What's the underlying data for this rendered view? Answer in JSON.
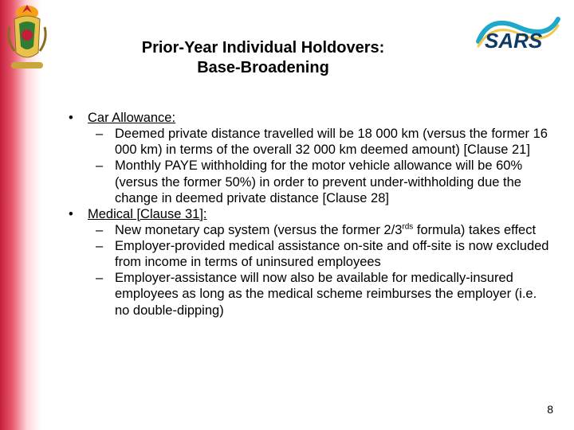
{
  "title_l1": "Prior-Year Individual Holdovers:",
  "title_l2": "Base-Broadening",
  "items": [
    {
      "label": "Car Allowance:",
      "underline": true,
      "sub": [
        "Deemed private distance travelled will be 18 000 km (versus the former 16 000 km) in terms of the overall 32 000 km deemed amount) [Clause 21]",
        "Monthly PAYE withholding for the motor vehicle allowance will be 60% (versus the former 50%) in order to prevent under-withholding due the change in deemed private distance [Clause 28]"
      ]
    },
    {
      "label": "Medical [Clause 31]:",
      "underline": true,
      "sub": [
        "New monetary cap system (versus the former 2/3{{SUP:rds}} formula) takes effect",
        "Employer-provided medical assistance on-site and off-site is now excluded from income in terms of uninsured employees",
        "Employer-assistance will now also be available for medically-insured employees as long as the medical scheme reimburses the employer (i.e. no double-dipping)"
      ]
    }
  ],
  "page_number": "8",
  "logos": {
    "coat_of_arms_alt": "national-coat-of-arms",
    "sars_alt": "sars-logo",
    "sars_text": "SARS"
  },
  "colors": {
    "stripe_red": "#c41e3a",
    "sars_cyan": "#1fa8c9",
    "sars_navy": "#0e3a66",
    "coat_gold": "#e8c24a",
    "coat_green": "#2e7d32",
    "coat_red": "#c41e3a"
  }
}
